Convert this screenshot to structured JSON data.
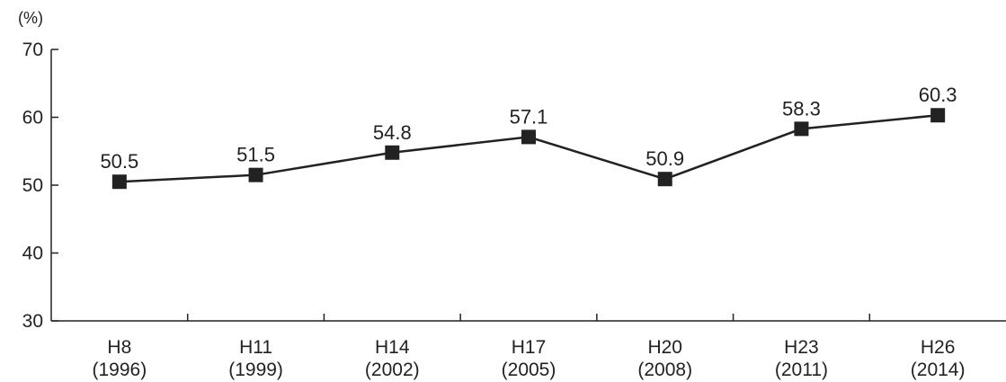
{
  "chart_data": {
    "type": "line",
    "unit": "(%)",
    "categories": [
      {
        "era": "H8",
        "year": "(1996)"
      },
      {
        "era": "H11",
        "year": "(1999)"
      },
      {
        "era": "H14",
        "year": "(2002)"
      },
      {
        "era": "H17",
        "year": "(2005)"
      },
      {
        "era": "H20",
        "year": "(2008)"
      },
      {
        "era": "H23",
        "year": "(2011)"
      },
      {
        "era": "H26",
        "year": "(2014)"
      }
    ],
    "values": [
      50.5,
      51.5,
      54.8,
      57.1,
      50.9,
      58.3,
      60.3
    ],
    "data_labels": [
      "50.5",
      "51.5",
      "54.8",
      "57.1",
      "50.9",
      "58.3",
      "60.3"
    ],
    "ylim": [
      30,
      70
    ],
    "yticks": [
      "30",
      "40",
      "50",
      "60",
      "70"
    ],
    "grid": false,
    "legend": "none",
    "marker": "square",
    "line_color": "#222222",
    "marker_color": "#222222"
  }
}
